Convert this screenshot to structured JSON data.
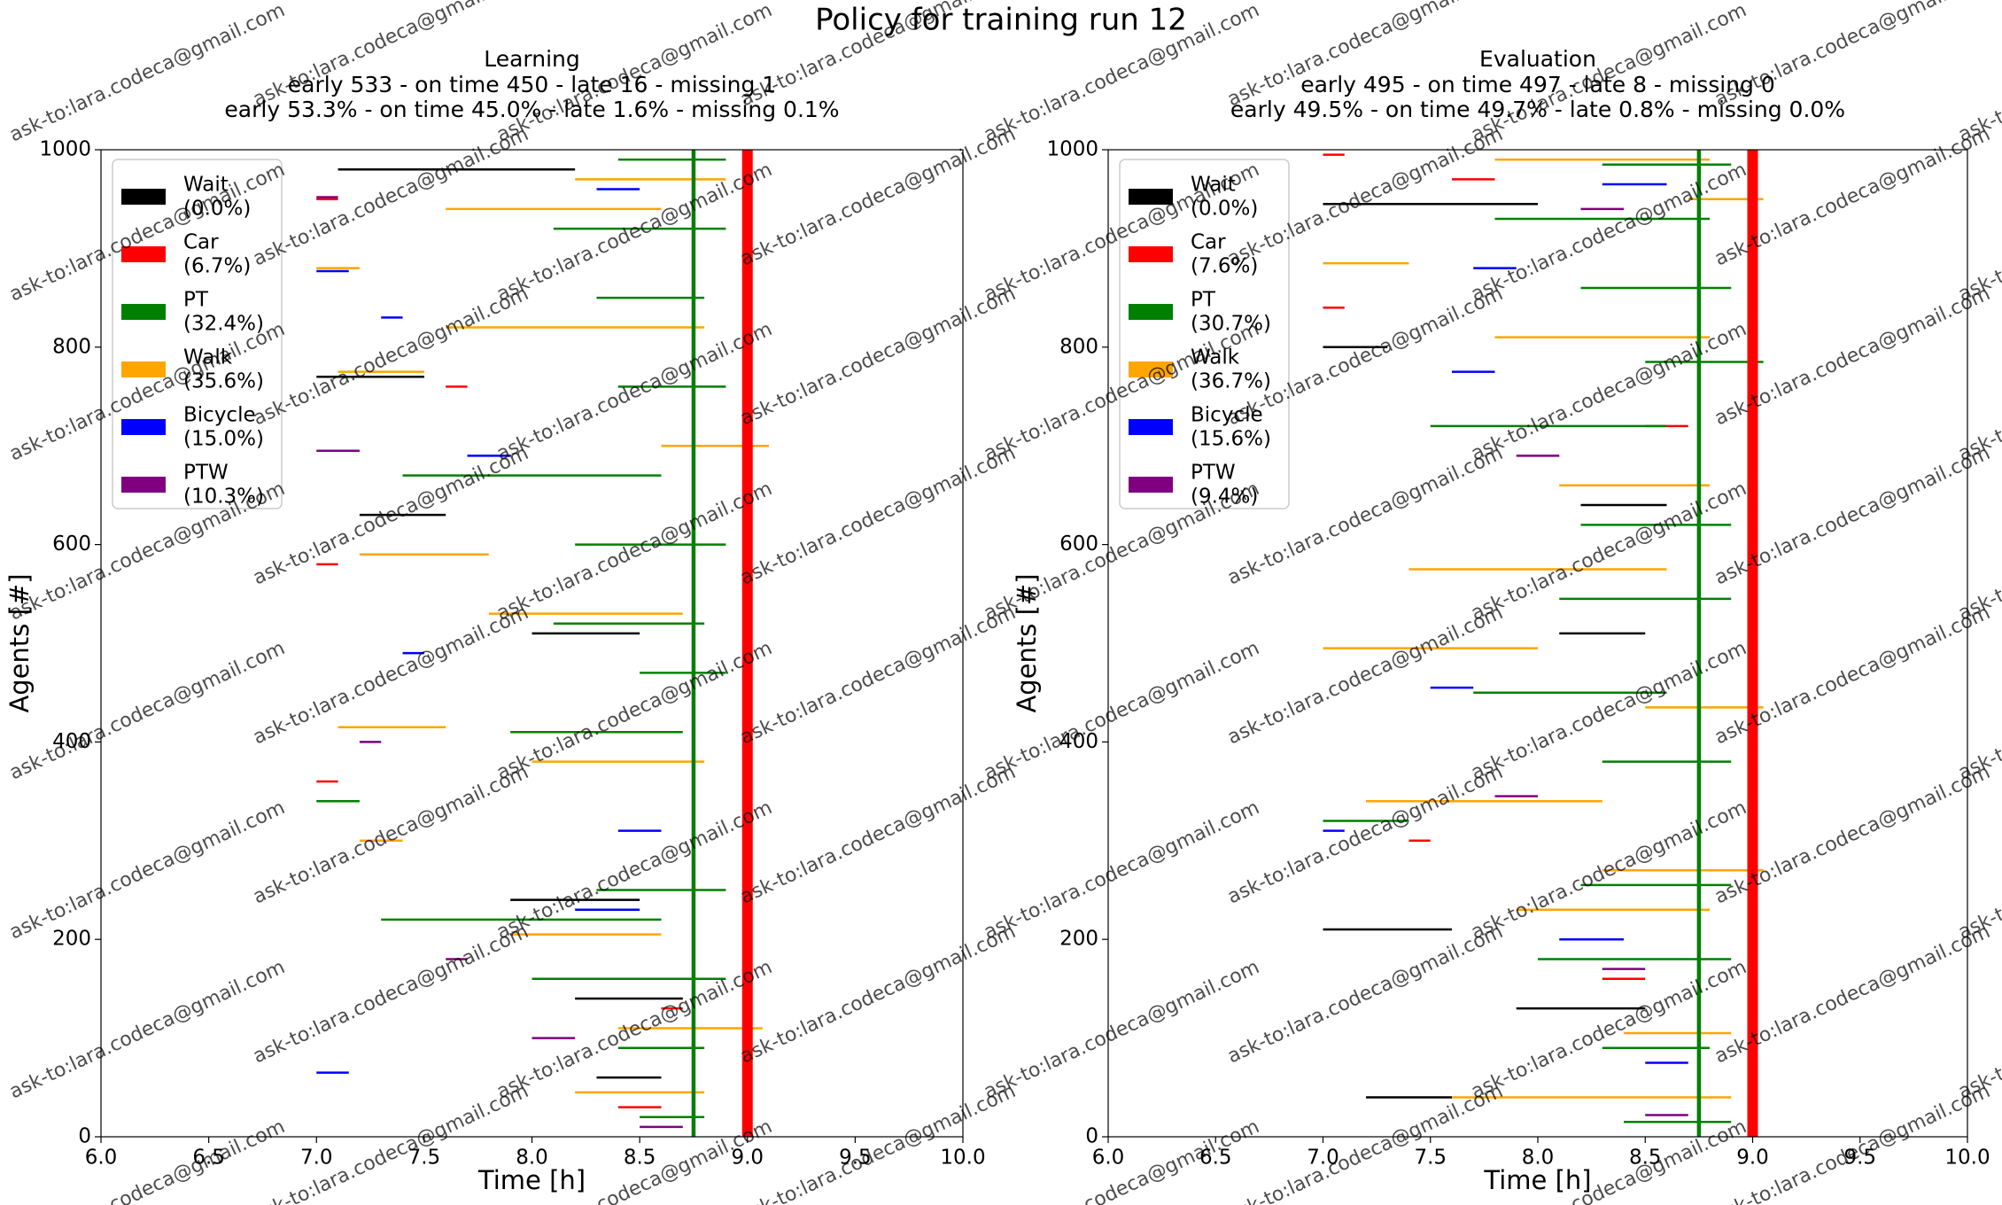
{
  "title": "Policy for training run 12",
  "watermark": "ask-to:lara.codeca@gmail.com",
  "chart_data": [
    {
      "type": "segments",
      "title": "Learning",
      "subtitle": [
        "early 533 - on time 450 - late 16 - missing 1",
        "early 53.3% - on time 45.0% - late 1.6% - missing 0.1%"
      ],
      "x_label": "Time [h]",
      "y_label": "Agents [#]",
      "xlim": [
        6,
        10
      ],
      "xticks": [
        {
          "value": 6,
          "label": "6.0"
        },
        {
          "value": 6.5,
          "label": "6.5"
        },
        {
          "value": 7,
          "label": "7.0"
        },
        {
          "value": 7.5,
          "label": "7.5"
        },
        {
          "value": 8,
          "label": "8.0"
        },
        {
          "value": 8.5,
          "label": "8.5"
        },
        {
          "value": 9,
          "label": "9.0"
        },
        {
          "value": 9.5,
          "label": "9.5"
        },
        {
          "value": 10,
          "label": "10.0"
        }
      ],
      "ylim": [
        0,
        1000
      ],
      "yticks": [
        0,
        200,
        400,
        600,
        800,
        1000
      ],
      "legend": "upper left",
      "vlines": [
        {
          "x": 8.75,
          "color": "green"
        },
        {
          "x": 9.0,
          "color": "red"
        }
      ],
      "series": [
        {
          "name": "Wait",
          "share_label": "(0.0%)",
          "color": "black",
          "segments": [
            [
              980,
              7.1,
              8.2
            ],
            [
              770,
              7.0,
              7.5
            ],
            [
              630,
              7.2,
              7.6
            ],
            [
              510,
              8.0,
              8.5
            ],
            [
              240,
              7.9,
              8.5
            ],
            [
              140,
              8.2,
              8.7
            ],
            [
              60,
              8.3,
              8.6
            ]
          ]
        },
        {
          "name": "Car",
          "share_label": "(6.7%)",
          "color": "red",
          "segments": [
            [
              950,
              7.0,
              7.1
            ],
            [
              760,
              7.6,
              7.7
            ],
            [
              580,
              7.0,
              7.1
            ],
            [
              360,
              7.0,
              7.1
            ],
            [
              130,
              8.6,
              8.7
            ],
            [
              30,
              8.4,
              8.6
            ]
          ]
        },
        {
          "name": "PT",
          "share_label": "(32.4%)",
          "color": "green",
          "segments": [
            [
              990,
              8.4,
              8.9
            ],
            [
              920,
              8.1,
              8.9
            ],
            [
              850,
              8.3,
              8.8
            ],
            [
              760,
              8.4,
              8.9
            ],
            [
              670,
              7.4,
              8.6
            ],
            [
              600,
              8.2,
              8.9
            ],
            [
              520,
              8.1,
              8.8
            ],
            [
              470,
              8.5,
              8.9
            ],
            [
              410,
              7.9,
              8.7
            ],
            [
              340,
              7.0,
              7.2
            ],
            [
              250,
              8.3,
              8.9
            ],
            [
              220,
              7.3,
              8.6
            ],
            [
              160,
              8.0,
              8.9
            ],
            [
              90,
              8.4,
              8.8
            ],
            [
              20,
              8.5,
              8.8
            ]
          ]
        },
        {
          "name": "Walk",
          "share_label": "(35.6%)",
          "color": "orange",
          "segments": [
            [
              970,
              8.2,
              8.9
            ],
            [
              940,
              7.6,
              8.6
            ],
            [
              880,
              7.0,
              7.2
            ],
            [
              820,
              7.6,
              8.8
            ],
            [
              775,
              7.1,
              7.5
            ],
            [
              700,
              8.6,
              9.1
            ],
            [
              590,
              7.2,
              7.8
            ],
            [
              530,
              7.8,
              8.7
            ],
            [
              415,
              7.1,
              7.6
            ],
            [
              380,
              8.0,
              8.8
            ],
            [
              300,
              7.2,
              7.4
            ],
            [
              205,
              7.9,
              8.6
            ],
            [
              110,
              8.4,
              9.07
            ],
            [
              45,
              8.2,
              8.8
            ]
          ]
        },
        {
          "name": "Bicycle",
          "share_label": "(15.0%)",
          "color": "blue",
          "segments": [
            [
              960,
              8.3,
              8.5
            ],
            [
              877,
              7.0,
              7.15
            ],
            [
              830,
              7.3,
              7.4
            ],
            [
              690,
              7.7,
              7.9
            ],
            [
              490,
              7.4,
              7.5
            ],
            [
              310,
              8.4,
              8.6
            ],
            [
              230,
              8.2,
              8.5
            ],
            [
              65,
              7.0,
              7.15
            ]
          ]
        },
        {
          "name": "PTW",
          "share_label": "(10.3%)",
          "color": "purple",
          "segments": [
            [
              952,
              7.0,
              7.1
            ],
            [
              695,
              7.0,
              7.2
            ],
            [
              400,
              7.2,
              7.3
            ],
            [
              180,
              7.6,
              7.7
            ],
            [
              100,
              8.0,
              8.2
            ],
            [
              10,
              8.5,
              8.7
            ]
          ]
        }
      ]
    },
    {
      "type": "segments",
      "title": "Evaluation",
      "subtitle": [
        "early 495 - on time 497 - late 8 - missing 0",
        "early 49.5% - on time 49.7% - late 0.8% - missing 0.0%"
      ],
      "x_label": "Time [h]",
      "y_label": "Agents [#]",
      "xlim": [
        6,
        10
      ],
      "xticks": [
        {
          "value": 6,
          "label": "6.0"
        },
        {
          "value": 6.5,
          "label": "6.5"
        },
        {
          "value": 7,
          "label": "7.0"
        },
        {
          "value": 7.5,
          "label": "7.5"
        },
        {
          "value": 8,
          "label": "8.0"
        },
        {
          "value": 8.5,
          "label": "8.5"
        },
        {
          "value": 9,
          "label": "9.0"
        },
        {
          "value": 9.5,
          "label": "9.5"
        },
        {
          "value": 10,
          "label": "10.0"
        }
      ],
      "ylim": [
        0,
        1000
      ],
      "yticks": [
        0,
        200,
        400,
        600,
        800,
        1000
      ],
      "legend": "upper left",
      "vlines": [
        {
          "x": 8.75,
          "color": "green"
        },
        {
          "x": 9.0,
          "color": "red"
        }
      ],
      "series": [
        {
          "name": "Wait",
          "share_label": "(0.0%)",
          "color": "black",
          "segments": [
            [
              945,
              7.0,
              8.0
            ],
            [
              800,
              7.0,
              7.3
            ],
            [
              640,
              8.2,
              8.6
            ],
            [
              510,
              8.1,
              8.5
            ],
            [
              210,
              7.0,
              7.6
            ],
            [
              130,
              7.9,
              8.5
            ],
            [
              40,
              7.2,
              7.6
            ]
          ]
        },
        {
          "name": "Car",
          "share_label": "(7.6%)",
          "color": "red",
          "segments": [
            [
              995,
              7.0,
              7.1
            ],
            [
              970,
              7.6,
              7.8
            ],
            [
              840,
              7.0,
              7.1
            ],
            [
              720,
              8.5,
              8.7
            ],
            [
              300,
              7.4,
              7.5
            ],
            [
              160,
              8.3,
              8.5
            ]
          ]
        },
        {
          "name": "PT",
          "share_label": "(30.7%)",
          "color": "green",
          "segments": [
            [
              985,
              8.3,
              8.9
            ],
            [
              930,
              7.8,
              8.8
            ],
            [
              860,
              8.2,
              8.9
            ],
            [
              785,
              8.5,
              9.05
            ],
            [
              720,
              7.5,
              8.6
            ],
            [
              620,
              8.2,
              8.9
            ],
            [
              545,
              8.1,
              8.9
            ],
            [
              450,
              7.7,
              8.6
            ],
            [
              380,
              8.3,
              8.9
            ],
            [
              320,
              7.0,
              7.4
            ],
            [
              255,
              8.2,
              8.9
            ],
            [
              180,
              8.0,
              8.9
            ],
            [
              90,
              8.3,
              8.8
            ],
            [
              15,
              8.4,
              8.9
            ]
          ]
        },
        {
          "name": "Walk",
          "share_label": "(36.7%)",
          "color": "orange",
          "segments": [
            [
              990,
              7.8,
              8.8
            ],
            [
              950,
              8.7,
              9.05
            ],
            [
              885,
              7.0,
              7.4
            ],
            [
              810,
              7.8,
              8.8
            ],
            [
              660,
              8.1,
              8.8
            ],
            [
              575,
              7.4,
              8.6
            ],
            [
              495,
              7.0,
              8.0
            ],
            [
              435,
              8.5,
              9.05
            ],
            [
              340,
              7.2,
              8.3
            ],
            [
              270,
              8.3,
              9.05
            ],
            [
              230,
              7.9,
              8.8
            ],
            [
              105,
              8.4,
              8.9
            ],
            [
              40,
              7.6,
              8.9
            ]
          ]
        },
        {
          "name": "Bicycle",
          "share_label": "(15.6%)",
          "color": "blue",
          "segments": [
            [
              965,
              8.3,
              8.6
            ],
            [
              880,
              7.7,
              7.9
            ],
            [
              775,
              7.6,
              7.8
            ],
            [
              455,
              7.5,
              7.7
            ],
            [
              310,
              7.0,
              7.1
            ],
            [
              200,
              8.1,
              8.4
            ],
            [
              75,
              8.5,
              8.7
            ]
          ]
        },
        {
          "name": "PTW",
          "share_label": "(9.4%)",
          "color": "purple",
          "segments": [
            [
              940,
              8.2,
              8.4
            ],
            [
              690,
              7.9,
              8.1
            ],
            [
              345,
              7.8,
              8.0
            ],
            [
              170,
              8.3,
              8.5
            ],
            [
              22,
              8.5,
              8.7
            ]
          ]
        }
      ]
    }
  ]
}
